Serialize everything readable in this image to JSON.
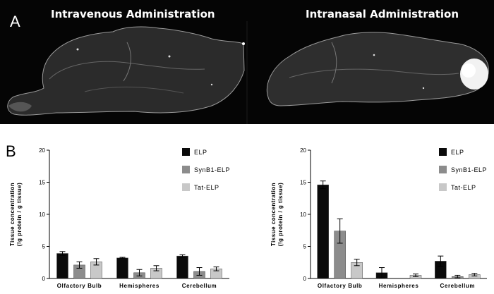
{
  "panel_a": {
    "label": "A",
    "left_title": "Intravenous Administration",
    "right_title": "Intranasal Administration"
  },
  "panel_b": {
    "label": "B"
  },
  "colors": {
    "ELP": "#0a0a0a",
    "SynB1-ELP": "#8c8c8c",
    "Tat-ELP": "#c8c8c8"
  },
  "chart_data": [
    {
      "type": "bar",
      "categories": [
        "Olfactory Bulb",
        "Hemispheres",
        "Cerebellum"
      ],
      "ylabel": "Tissue concentration",
      "ylabel2": "(!g protein / g tissue)",
      "ylim": [
        0,
        20
      ],
      "yticks": [
        "0",
        "5",
        "10",
        "15",
        "20"
      ],
      "legend_position": "top-right",
      "series": [
        {
          "name": "ELP",
          "values": [
            3.9,
            3.2,
            3.5
          ],
          "errors": [
            0.3,
            0.1,
            0.2
          ]
        },
        {
          "name": "SynB1-ELP",
          "values": [
            2.1,
            0.9,
            1.1
          ],
          "errors": [
            0.5,
            0.5,
            0.6
          ]
        },
        {
          "name": "Tat-ELP",
          "values": [
            2.6,
            1.6,
            1.5
          ],
          "errors": [
            0.5,
            0.4,
            0.3
          ]
        }
      ]
    },
    {
      "type": "bar",
      "categories": [
        "Olfactory Bulb",
        "Hemispheres",
        "Cerebellum"
      ],
      "ylabel": "Tissue concentration",
      "ylabel2": "(!g protein / g tissue)",
      "ylim": [
        0,
        20
      ],
      "yticks": [
        "0",
        "5",
        "10",
        "15",
        "20"
      ],
      "legend_position": "top-right",
      "series": [
        {
          "name": "ELP",
          "values": [
            14.6,
            0.9,
            2.7
          ],
          "errors": [
            0.6,
            0.8,
            0.8
          ]
        },
        {
          "name": "SynB1-ELP",
          "values": [
            7.4,
            0.0,
            0.3
          ],
          "errors": [
            1.9,
            0.0,
            0.2
          ]
        },
        {
          "name": "Tat-ELP",
          "values": [
            2.5,
            0.5,
            0.6
          ],
          "errors": [
            0.5,
            0.2,
            0.2
          ]
        }
      ]
    }
  ]
}
